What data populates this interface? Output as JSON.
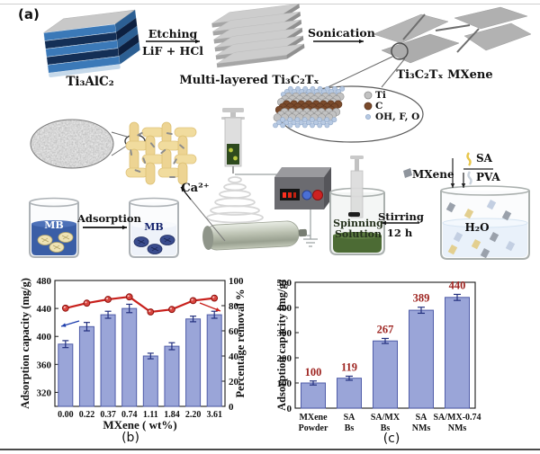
{
  "figure": {
    "panel_a_label": "(a)",
    "panel_b_label": "(b)",
    "panel_c_label": "(c)"
  },
  "schematic": {
    "material_1": "Ti₃AlC₂",
    "arrow_1_top": "Etching",
    "arrow_1_bottom": "LiF + HCl",
    "material_2": "Multi-layered Ti₃C₂Tₓ",
    "arrow_2_top": "Sonication",
    "material_3": "Ti₃C₂Tₓ MXene",
    "atom_legend": [
      {
        "label": "Ti",
        "color": "#c2c2c2"
      },
      {
        "label": "C",
        "color": "#7a4a2b"
      },
      {
        "label": "OH, F, O",
        "color": "#b7c9e2"
      }
    ],
    "ca_label": "Ca²⁺",
    "spinning_beaker_line1": "Spinning",
    "spinning_beaker_line2": "Solution",
    "stirring_line1": "Stirring",
    "stirring_line2": "12 h",
    "h2o_label": "H₂O",
    "mxene_label": "MXene",
    "sa_label": "SA",
    "pva_label": "PVA",
    "adsorption_label": "Adsorption",
    "mb_left_label": "MB",
    "mb_right_label": "MB"
  },
  "chart_data": [
    {
      "id": "b",
      "type": "bar",
      "note": "bar series on left axis + line series on right axis",
      "xlabel": "MXene ( wt%)",
      "ylabel_left": "Adsorption capacity (mg/g)",
      "ylabel_right": "Percentage removal %",
      "categories": [
        "0.00",
        "0.22",
        "0.37",
        "0.74",
        "1.11",
        "1.84",
        "2.20",
        "3.61"
      ],
      "bar_series": {
        "name": "Adsorption capacity (mg/g)",
        "values": [
          389,
          414,
          431,
          440,
          372,
          386,
          425,
          431
        ],
        "errors": [
          5,
          6,
          5,
          6,
          4,
          5,
          4,
          5
        ]
      },
      "line_series": {
        "name": "Percentage removal %",
        "values": [
          78,
          82,
          85,
          87,
          75,
          77,
          84,
          86
        ]
      },
      "ylim_left": [
        300,
        480
      ],
      "yticks_left": [
        320,
        360,
        400,
        440,
        480
      ],
      "ylim_right": [
        0,
        100
      ],
      "yticks_right": [
        0,
        20,
        40,
        60,
        80,
        100
      ],
      "grid": false,
      "bar_color": "#9aa5d8",
      "bar_edge": "#4f5ca8",
      "line_color": "#c8201c",
      "error_color": "#23307e"
    },
    {
      "id": "c",
      "type": "bar",
      "xlabel": "",
      "ylabel": "Adsorption capacity (mg/g)",
      "categories": [
        [
          "MXene",
          "Powder"
        ],
        [
          "SA",
          "Bs"
        ],
        [
          "SA/MX",
          "Bs"
        ],
        [
          "SA",
          "NMs"
        ],
        [
          "SA/MX-0.74",
          "NMs"
        ]
      ],
      "values": [
        100,
        119,
        267,
        389,
        440
      ],
      "errors": [
        8,
        8,
        10,
        12,
        12
      ],
      "value_labels": [
        "100",
        "119",
        "267",
        "389",
        "440"
      ],
      "ylim": [
        0,
        500
      ],
      "yticks": [
        0,
        100,
        200,
        300,
        400,
        500
      ],
      "grid": false,
      "bar_color": "#9aa5d8",
      "bar_edge": "#4f5ca8",
      "error_color": "#23307e",
      "label_color": "#9e2420"
    }
  ]
}
